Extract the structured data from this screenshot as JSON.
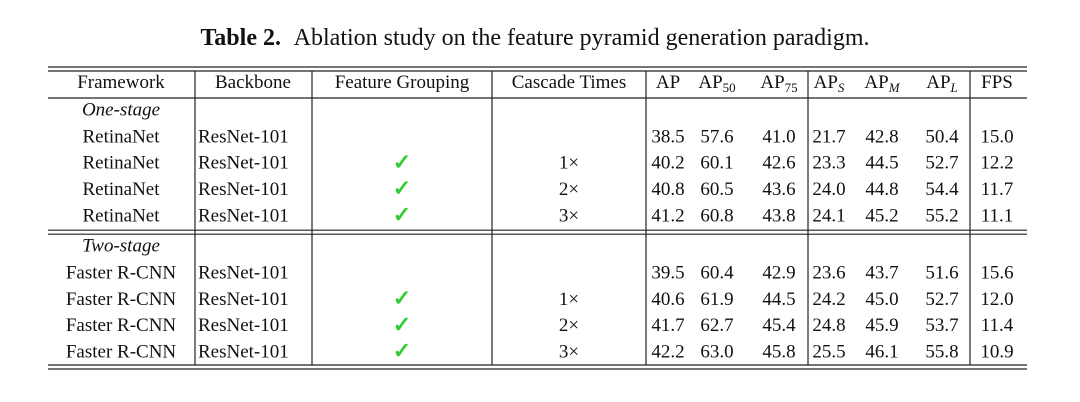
{
  "caption": {
    "label": "Table 2.",
    "text": "Ablation study on the feature pyramid generation paradigm."
  },
  "table": {
    "header": [
      {
        "text": "Framework"
      },
      {
        "text": "Backbone"
      },
      {
        "text": "Feature Grouping"
      },
      {
        "text": "Cascade Times"
      },
      {
        "text": "AP"
      },
      {
        "text": "AP",
        "sub": "50"
      },
      {
        "text": "AP",
        "sub": "75"
      },
      {
        "text": "AP",
        "sub": "S"
      },
      {
        "text": "AP",
        "sub": "M"
      },
      {
        "text": "AP",
        "sub": "L"
      },
      {
        "text": "FPS"
      }
    ],
    "sections": [
      {
        "title": "One-stage",
        "rows": [
          [
            "RetinaNet",
            "ResNet-101",
            null,
            null,
            "38.5",
            "57.6",
            "41.0",
            "21.7",
            "42.8",
            "50.4",
            "15.0"
          ],
          [
            "RetinaNet",
            "ResNet-101",
            "✓",
            "1×",
            "40.2",
            "60.1",
            "42.6",
            "23.3",
            "44.5",
            "52.7",
            "12.2"
          ],
          [
            "RetinaNet",
            "ResNet-101",
            "✓",
            "2×",
            "40.8",
            "60.5",
            "43.6",
            "24.0",
            "44.8",
            "54.4",
            "11.7"
          ],
          [
            "RetinaNet",
            "ResNet-101",
            "✓",
            "3×",
            "41.2",
            "60.8",
            "43.8",
            "24.1",
            "45.2",
            "55.2",
            "11.1"
          ]
        ]
      },
      {
        "title": "Two-stage",
        "rows": [
          [
            "Faster R-CNN",
            "ResNet-101",
            null,
            null,
            "39.5",
            "60.4",
            "42.9",
            "23.6",
            "43.7",
            "51.6",
            "15.6"
          ],
          [
            "Faster R-CNN",
            "ResNet-101",
            "✓",
            "1×",
            "40.6",
            "61.9",
            "44.5",
            "24.2",
            "45.0",
            "52.7",
            "12.0"
          ],
          [
            "Faster R-CNN",
            "ResNet-101",
            "✓",
            "2×",
            "41.7",
            "62.7",
            "45.4",
            "24.8",
            "45.9",
            "53.7",
            "11.4"
          ],
          [
            "Faster R-CNN",
            "ResNet-101",
            "✓",
            "3×",
            "42.2",
            "63.0",
            "45.8",
            "25.5",
            "46.1",
            "55.8",
            "10.9"
          ]
        ]
      }
    ]
  }
}
